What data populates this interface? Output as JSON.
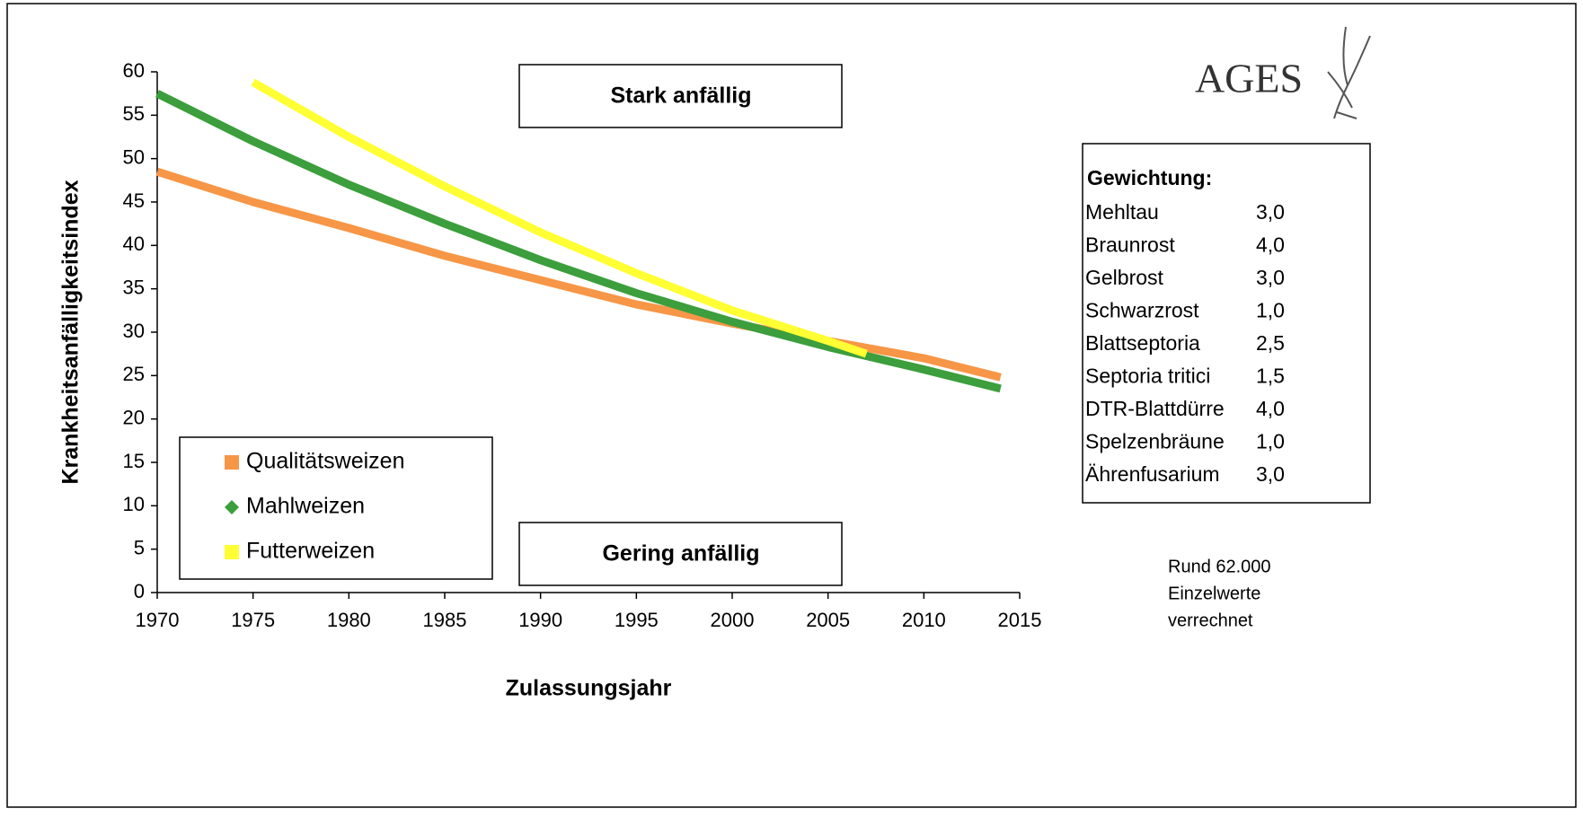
{
  "chart_data": {
    "type": "line",
    "xlabel": "Zulassungsjahr",
    "ylabel": "Krankheitsanfälligkeitsindex",
    "xlim": [
      1970,
      2015
    ],
    "ylim": [
      0,
      60
    ],
    "xticks": [
      1970,
      1975,
      1980,
      1985,
      1990,
      1995,
      2000,
      2005,
      2010,
      2015
    ],
    "yticks": [
      0,
      5,
      10,
      15,
      20,
      25,
      30,
      35,
      40,
      45,
      50,
      55,
      60
    ],
    "annotations": [
      "Stark anfällig",
      "Gering anfällig"
    ],
    "note": [
      "Rund 62.000",
      "Einzelwerte",
      "verrechnet"
    ],
    "logo": "AGES",
    "series": [
      {
        "name": "Qualitätsweizen",
        "color": "#f79646",
        "x": [
          1970,
          1975,
          1980,
          1985,
          1990,
          1995,
          2000,
          2005,
          2010,
          2014
        ],
        "values": [
          48.5,
          45,
          42,
          38.8,
          36,
          33.2,
          31,
          29,
          27,
          24.8
        ]
      },
      {
        "name": "Mahlweizen",
        "color": "#3c9e3c",
        "x": [
          1970,
          1975,
          1980,
          1985,
          1990,
          1995,
          2000,
          2005,
          2010,
          2014
        ],
        "values": [
          57.5,
          52,
          47,
          42.5,
          38.3,
          34.5,
          31.2,
          28.3,
          25.7,
          23.5
        ]
      },
      {
        "name": "Futterweizen",
        "color": "#ffff33",
        "x": [
          1975,
          1980,
          1985,
          1990,
          1995,
          2000,
          2005,
          2007
        ],
        "values": [
          58.8,
          52.5,
          46.8,
          41.5,
          36.8,
          32.5,
          29,
          27.5
        ]
      }
    ]
  },
  "weights": {
    "title": "Gewichtung:",
    "rows": [
      [
        "Mehltau",
        "3,0"
      ],
      [
        "Braunrost",
        "4,0"
      ],
      [
        "Gelbrost",
        "3,0"
      ],
      [
        "Schwarzrost",
        "1,0"
      ],
      [
        "Blattseptoria",
        "2,5"
      ],
      [
        "Septoria tritici",
        "1,5"
      ],
      [
        "DTR-Blattdürre",
        "4,0"
      ],
      [
        "Spelzenbräune",
        "1,0"
      ],
      [
        "Ährenfusarium",
        "3,0"
      ]
    ]
  }
}
